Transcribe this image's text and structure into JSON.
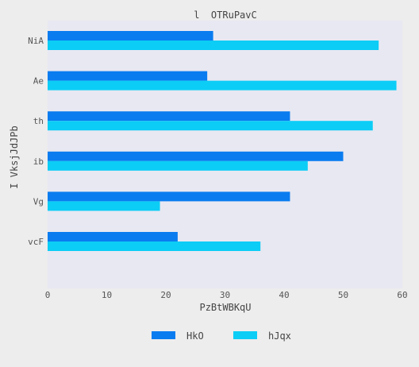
{
  "chart_data": {
    "type": "bar",
    "orientation": "horizontal",
    "title": "l  OTRuPavC",
    "xlabel": "PzBtWBKqU",
    "ylabel": "I VksjJdJPb",
    "categories": [
      "NiA",
      "Ae",
      "th",
      "ib",
      "Vg",
      "vcF"
    ],
    "xlim": [
      0,
      60
    ],
    "xticks": [
      0,
      10,
      20,
      30,
      40,
      50,
      60
    ],
    "grid": false,
    "legend_position": "bottom",
    "series": [
      {
        "name": "HkO",
        "color": "#0a7cf0",
        "values": [
          28,
          27,
          41,
          50,
          41,
          22
        ]
      },
      {
        "name": "hJqx",
        "color": "#0ccdf6",
        "values": [
          56,
          59,
          55,
          44,
          19,
          36
        ]
      }
    ]
  }
}
